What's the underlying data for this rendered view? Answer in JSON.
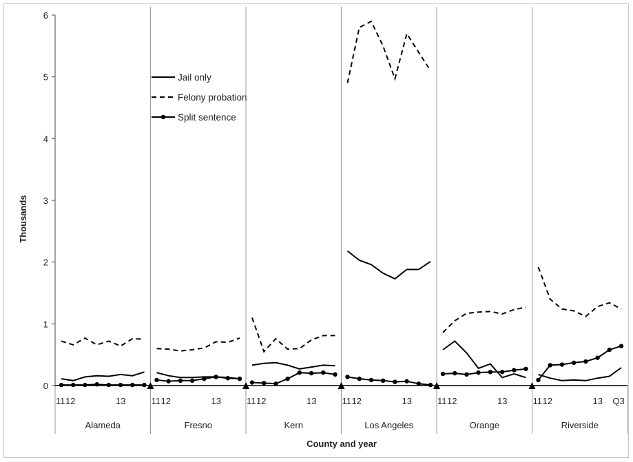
{
  "chart_data": {
    "type": "line",
    "ylabel": "Thousands",
    "xlabel": "County and year",
    "ylim": [
      0,
      6
    ],
    "yticks": [
      0,
      1,
      2,
      3,
      4,
      5,
      6
    ],
    "legend": {
      "placement": "top-left",
      "entries": [
        "Jail only",
        "Felony probation",
        "Split sentence"
      ]
    },
    "counties": [
      "Alameda",
      "Fresno",
      "Kern",
      "Los Angeles",
      "Orange",
      "Riverside"
    ],
    "period_labels": {
      "first": "11",
      "second": "12",
      "third": "13",
      "last_riverside": "Q3"
    },
    "series": [
      {
        "name": "Jail only",
        "style": "solid",
        "values": {
          "Alameda": [
            0.11,
            0.08,
            0.14,
            0.16,
            0.15,
            0.18,
            0.16,
            0.22
          ],
          "Fresno": [
            0.21,
            0.16,
            0.13,
            0.13,
            0.14,
            0.14,
            0.13,
            0.11
          ],
          "Kern": [
            0.33,
            0.36,
            0.37,
            0.33,
            0.27,
            0.3,
            0.33,
            0.32
          ],
          "Los Angeles": [
            2.18,
            2.03,
            1.96,
            1.82,
            1.73,
            1.88,
            1.88,
            2.01
          ],
          "Orange": [
            0.58,
            0.72,
            0.53,
            0.28,
            0.35,
            0.13,
            0.19,
            0.13
          ],
          "Riverside": [
            0.18,
            0.12,
            0.08,
            0.09,
            0.08,
            0.12,
            0.15,
            0.29
          ]
        }
      },
      {
        "name": "Felony probation",
        "style": "dashed",
        "values": {
          "Alameda": [
            0.72,
            0.66,
            0.77,
            0.66,
            0.72,
            0.64,
            0.76,
            0.75
          ],
          "Fresno": [
            0.6,
            0.59,
            0.56,
            0.58,
            0.61,
            0.71,
            0.7,
            0.77
          ],
          "Kern": [
            1.1,
            0.55,
            0.76,
            0.59,
            0.6,
            0.74,
            0.81,
            0.81
          ],
          "Los Angeles": [
            4.9,
            5.8,
            5.9,
            5.5,
            4.97,
            5.7,
            5.4,
            5.1
          ],
          "Orange": [
            0.86,
            1.05,
            1.17,
            1.19,
            1.2,
            1.16,
            1.23,
            1.27
          ],
          "Riverside": [
            1.92,
            1.4,
            1.24,
            1.21,
            1.12,
            1.28,
            1.34,
            1.24
          ]
        }
      },
      {
        "name": "Split sentence",
        "style": "solid-markers",
        "values": {
          "Alameda": [
            0.01,
            0.01,
            0.01,
            0.02,
            0.01,
            0.01,
            0.01,
            0.01
          ],
          "Fresno": [
            0.09,
            0.07,
            0.08,
            0.08,
            0.11,
            0.14,
            0.12,
            0.11
          ],
          "Kern": [
            0.05,
            0.04,
            0.03,
            0.11,
            0.21,
            0.2,
            0.21,
            0.18
          ],
          "Los Angeles": [
            0.14,
            0.11,
            0.09,
            0.08,
            0.06,
            0.07,
            0.03,
            0.01
          ],
          "Orange": [
            0.19,
            0.2,
            0.18,
            0.21,
            0.22,
            0.22,
            0.25,
            0.27
          ],
          "Riverside": [
            0.09,
            0.33,
            0.34,
            0.37,
            0.39,
            0.45,
            0.58,
            0.64
          ]
        }
      }
    ],
    "colors": {
      "line": "#000000",
      "divider": "#999999",
      "axis": "#444444"
    }
  }
}
